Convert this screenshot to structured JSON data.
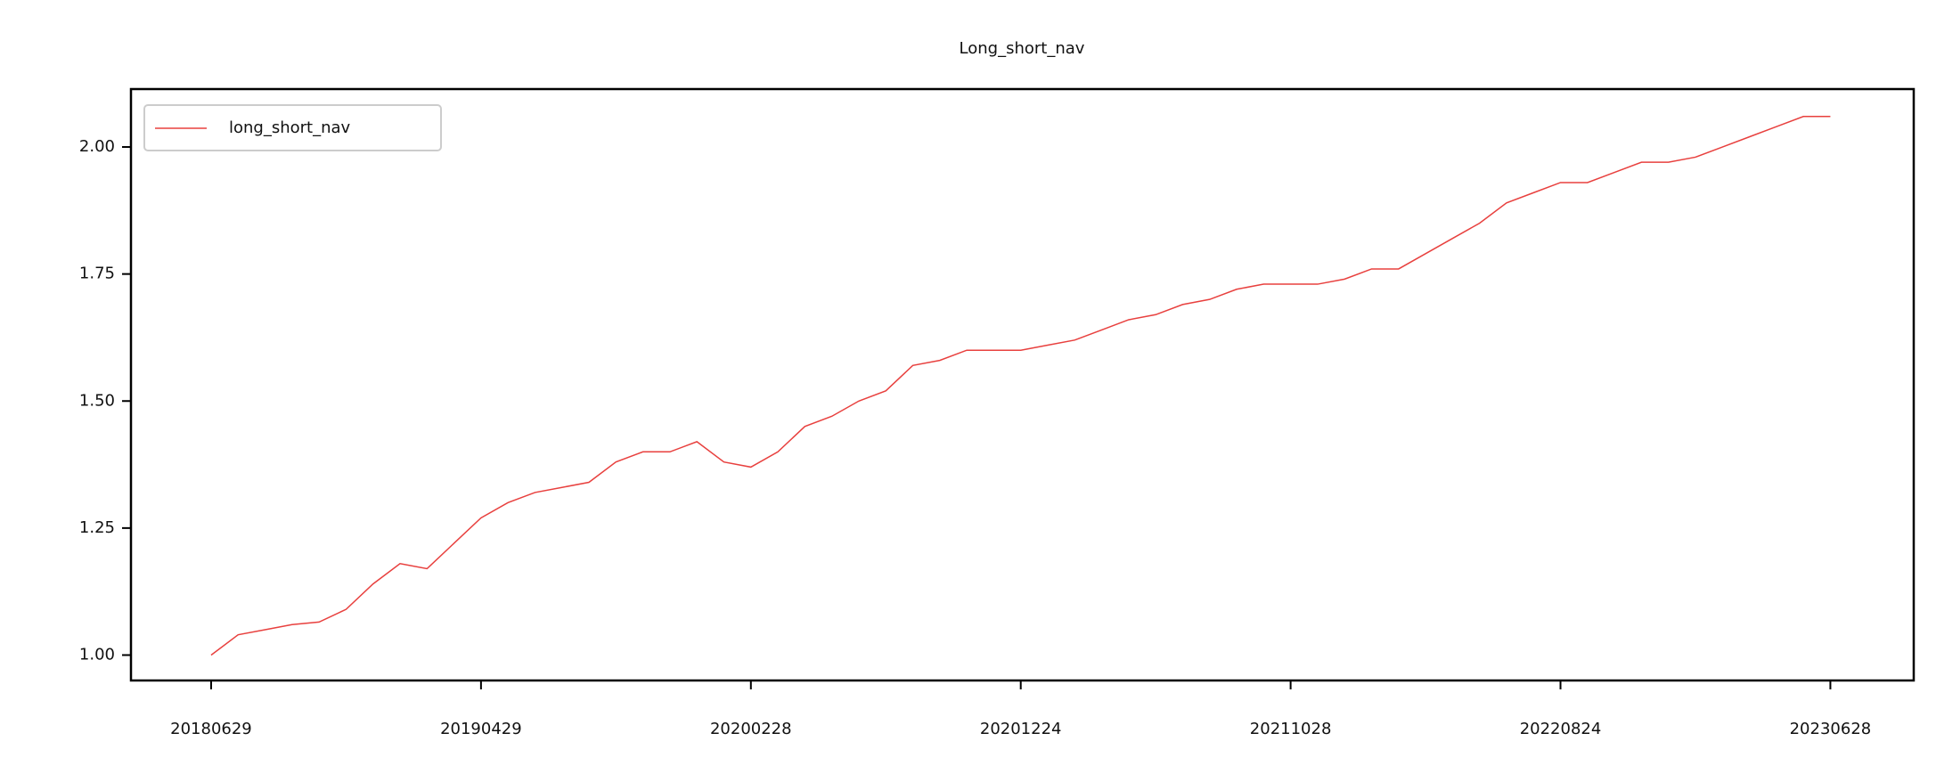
{
  "chart_data": {
    "type": "line",
    "title": "Long_short_nav",
    "categories": [
      "20180629",
      null,
      null,
      null,
      null,
      null,
      null,
      null,
      null,
      null,
      "20190429",
      null,
      null,
      null,
      null,
      null,
      null,
      null,
      null,
      null,
      "20200228",
      null,
      null,
      null,
      null,
      null,
      null,
      null,
      null,
      null,
      "20201224",
      null,
      null,
      null,
      null,
      null,
      null,
      null,
      null,
      null,
      "20211028",
      null,
      null,
      null,
      null,
      null,
      null,
      null,
      null,
      null,
      "20220824",
      null,
      null,
      null,
      null,
      null,
      null,
      null,
      null,
      null,
      "20230628"
    ],
    "series": [
      {
        "name": "long_short_nav",
        "color": "#e8403e",
        "values": [
          1.0,
          1.04,
          1.05,
          1.06,
          1.065,
          1.09,
          1.14,
          1.18,
          1.17,
          1.22,
          1.27,
          1.3,
          1.32,
          1.33,
          1.34,
          1.38,
          1.4,
          1.4,
          1.42,
          1.38,
          1.37,
          1.4,
          1.45,
          1.47,
          1.5,
          1.52,
          1.57,
          1.58,
          1.6,
          1.6,
          1.6,
          1.61,
          1.62,
          1.64,
          1.66,
          1.67,
          1.69,
          1.7,
          1.72,
          1.73,
          1.73,
          1.73,
          1.74,
          1.76,
          1.76,
          1.79,
          1.82,
          1.85,
          1.89,
          1.91,
          1.93,
          1.93,
          1.95,
          1.97,
          1.97,
          1.98,
          2.0,
          2.02,
          2.04,
          2.06,
          2.06
        ]
      }
    ],
    "ylim": [
      0.95,
      2.114
    ],
    "yticks": [
      {
        "value": 1.0,
        "label": "1.00"
      },
      {
        "value": 1.25,
        "label": "1.25"
      },
      {
        "value": 1.5,
        "label": "1.50"
      },
      {
        "value": 1.75,
        "label": "1.75"
      },
      {
        "value": 2.0,
        "label": "2.00"
      }
    ],
    "legend": "upper left",
    "grid": false
  }
}
